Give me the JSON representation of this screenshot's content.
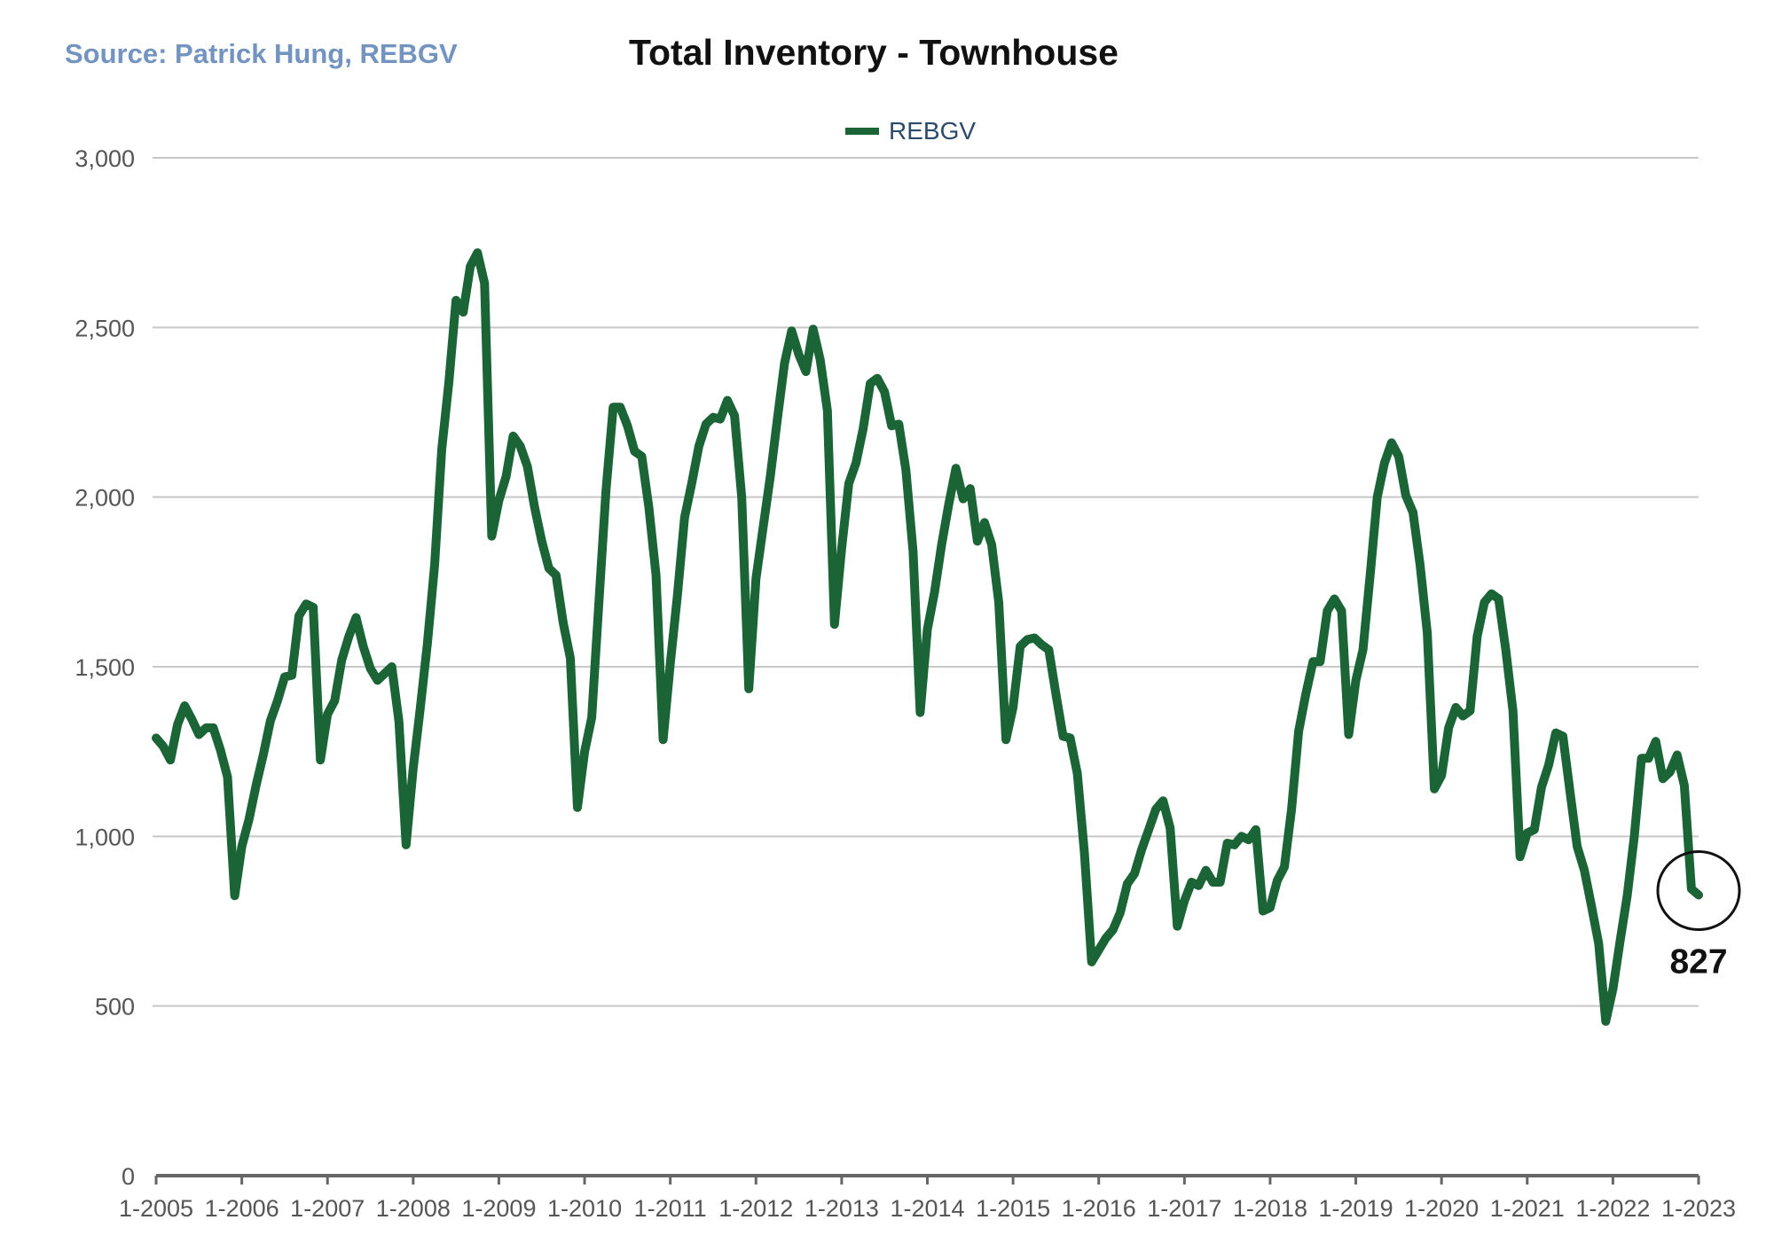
{
  "source": "Source: Patrick Hung, REBGV",
  "colors": {
    "line": "#1a6436",
    "source": "#7394c0",
    "legend_text": "#2c4a6b",
    "grid": "#c8c8c8",
    "axis": "#666666"
  },
  "chart_data": {
    "type": "line",
    "title": "Total Inventory - Townhouse",
    "xlabel": "",
    "ylabel": "",
    "legend": {
      "placement": "top-center",
      "entries": [
        "REBGV"
      ]
    },
    "grid": {
      "y": true,
      "x": false
    },
    "ylim": [
      0,
      3000
    ],
    "yticks": [
      0,
      500,
      1000,
      1500,
      2000,
      2500,
      3000
    ],
    "ytick_labels": [
      "0",
      "500",
      "1,000",
      "1,500",
      "2,000",
      "2,500",
      "3,000"
    ],
    "xlim": [
      "2005-01",
      "2023-01"
    ],
    "xtick_labels": [
      "1-2005",
      "1-2006",
      "1-2007",
      "1-2008",
      "1-2009",
      "1-2010",
      "1-2011",
      "1-2012",
      "1-2013",
      "1-2014",
      "1-2015",
      "1-2016",
      "1-2017",
      "1-2018",
      "1-2019",
      "1-2020",
      "1-2021",
      "1-2022",
      "1-2023"
    ],
    "annotation": {
      "label": "827",
      "x": "2023-01",
      "y": 827
    },
    "series": [
      {
        "name": "REBGV",
        "x": [
          "2005-01",
          "2005-02",
          "2005-03",
          "2005-04",
          "2005-05",
          "2005-06",
          "2005-07",
          "2005-08",
          "2005-09",
          "2005-10",
          "2005-11",
          "2005-12",
          "2006-01",
          "2006-02",
          "2006-03",
          "2006-04",
          "2006-05",
          "2006-06",
          "2006-07",
          "2006-08",
          "2006-09",
          "2006-10",
          "2006-11",
          "2006-12",
          "2007-01",
          "2007-02",
          "2007-03",
          "2007-04",
          "2007-05",
          "2007-06",
          "2007-07",
          "2007-08",
          "2007-09",
          "2007-10",
          "2007-11",
          "2007-12",
          "2008-01",
          "2008-02",
          "2008-03",
          "2008-04",
          "2008-05",
          "2008-06",
          "2008-07",
          "2008-08",
          "2008-09",
          "2008-10",
          "2008-11",
          "2008-12",
          "2009-01",
          "2009-02",
          "2009-03",
          "2009-04",
          "2009-05",
          "2009-06",
          "2009-07",
          "2009-08",
          "2009-09",
          "2009-10",
          "2009-11",
          "2009-12",
          "2010-01",
          "2010-02",
          "2010-03",
          "2010-04",
          "2010-05",
          "2010-06",
          "2010-07",
          "2010-08",
          "2010-09",
          "2010-10",
          "2010-11",
          "2010-12",
          "2011-01",
          "2011-02",
          "2011-03",
          "2011-04",
          "2011-05",
          "2011-06",
          "2011-07",
          "2011-08",
          "2011-09",
          "2011-10",
          "2011-11",
          "2011-12",
          "2012-01",
          "2012-02",
          "2012-03",
          "2012-04",
          "2012-05",
          "2012-06",
          "2012-07",
          "2012-08",
          "2012-09",
          "2012-10",
          "2012-11",
          "2012-12",
          "2013-01",
          "2013-02",
          "2013-03",
          "2013-04",
          "2013-05",
          "2013-06",
          "2013-07",
          "2013-08",
          "2013-09",
          "2013-10",
          "2013-11",
          "2013-12",
          "2014-01",
          "2014-02",
          "2014-03",
          "2014-04",
          "2014-05",
          "2014-06",
          "2014-07",
          "2014-08",
          "2014-09",
          "2014-10",
          "2014-11",
          "2014-12",
          "2015-01",
          "2015-02",
          "2015-03",
          "2015-04",
          "2015-05",
          "2015-06",
          "2015-07",
          "2015-08",
          "2015-09",
          "2015-10",
          "2015-11",
          "2015-12",
          "2016-01",
          "2016-02",
          "2016-03",
          "2016-04",
          "2016-05",
          "2016-06",
          "2016-07",
          "2016-08",
          "2016-09",
          "2016-10",
          "2016-11",
          "2016-12",
          "2017-01",
          "2017-02",
          "2017-03",
          "2017-04",
          "2017-05",
          "2017-06",
          "2017-07",
          "2017-08",
          "2017-09",
          "2017-10",
          "2017-11",
          "2017-12",
          "2018-01",
          "2018-02",
          "2018-03",
          "2018-04",
          "2018-05",
          "2018-06",
          "2018-07",
          "2018-08",
          "2018-09",
          "2018-10",
          "2018-11",
          "2018-12",
          "2019-01",
          "2019-02",
          "2019-03",
          "2019-04",
          "2019-05",
          "2019-06",
          "2019-07",
          "2019-08",
          "2019-09",
          "2019-10",
          "2019-11",
          "2019-12",
          "2020-01",
          "2020-02",
          "2020-03",
          "2020-04",
          "2020-05",
          "2020-06",
          "2020-07",
          "2020-08",
          "2020-09",
          "2020-10",
          "2020-11",
          "2020-12",
          "2021-01",
          "2021-02",
          "2021-03",
          "2021-04",
          "2021-05",
          "2021-06",
          "2021-07",
          "2021-08",
          "2021-09",
          "2021-10",
          "2021-11",
          "2021-12",
          "2022-01",
          "2022-02",
          "2022-03",
          "2022-04",
          "2022-05",
          "2022-06",
          "2022-07",
          "2022-08",
          "2022-09",
          "2022-10",
          "2022-11",
          "2022-12",
          "2023-01"
        ],
        "values": [
          1290,
          1265,
          1225,
          1330,
          1385,
          1345,
          1300,
          1320,
          1320,
          1255,
          1175,
          825,
          970,
          1050,
          1150,
          1240,
          1340,
          1400,
          1470,
          1475,
          1650,
          1685,
          1675,
          1225,
          1360,
          1400,
          1520,
          1590,
          1645,
          1560,
          1495,
          1460,
          1480,
          1500,
          1340,
          975,
          1200,
          1380,
          1570,
          1800,
          2140,
          2340,
          2580,
          2545,
          2680,
          2720,
          2630,
          1885,
          1990,
          2060,
          2180,
          2150,
          2090,
          1970,
          1870,
          1790,
          1770,
          1630,
          1525,
          1085,
          1250,
          1350,
          1690,
          2020,
          2265,
          2265,
          2210,
          2135,
          2120,
          1970,
          1770,
          1285,
          1510,
          1710,
          1940,
          2040,
          2150,
          2215,
          2235,
          2230,
          2285,
          2240,
          2000,
          1435,
          1760,
          1910,
          2060,
          2230,
          2395,
          2490,
          2420,
          2370,
          2495,
          2405,
          2255,
          1625,
          1850,
          2040,
          2100,
          2200,
          2335,
          2350,
          2310,
          2210,
          2215,
          2080,
          1840,
          1365,
          1610,
          1720,
          1860,
          1980,
          2085,
          1995,
          2025,
          1870,
          1925,
          1860,
          1690,
          1285,
          1380,
          1560,
          1580,
          1585,
          1565,
          1550,
          1420,
          1295,
          1290,
          1185,
          950,
          630,
          665,
          700,
          725,
          775,
          860,
          890,
          960,
          1020,
          1080,
          1105,
          1025,
          735,
          810,
          865,
          855,
          900,
          865,
          865,
          980,
          975,
          1000,
          990,
          1020,
          780,
          790,
          870,
          910,
          1080,
          1310,
          1420,
          1515,
          1515,
          1665,
          1700,
          1665,
          1300,
          1460,
          1550,
          1770,
          2000,
          2100,
          2160,
          2120,
          2005,
          1955,
          1800,
          1600,
          1140,
          1180,
          1320,
          1380,
          1355,
          1370,
          1590,
          1690,
          1715,
          1700,
          1550,
          1370,
          940,
          1010,
          1020,
          1145,
          1210,
          1305,
          1295,
          1130,
          970,
          900,
          795,
          685,
          455,
          550,
          690,
          825,
          1000,
          1230,
          1230,
          1280,
          1170,
          1190,
          1240,
          1150,
          845,
          827
        ]
      }
    ]
  }
}
